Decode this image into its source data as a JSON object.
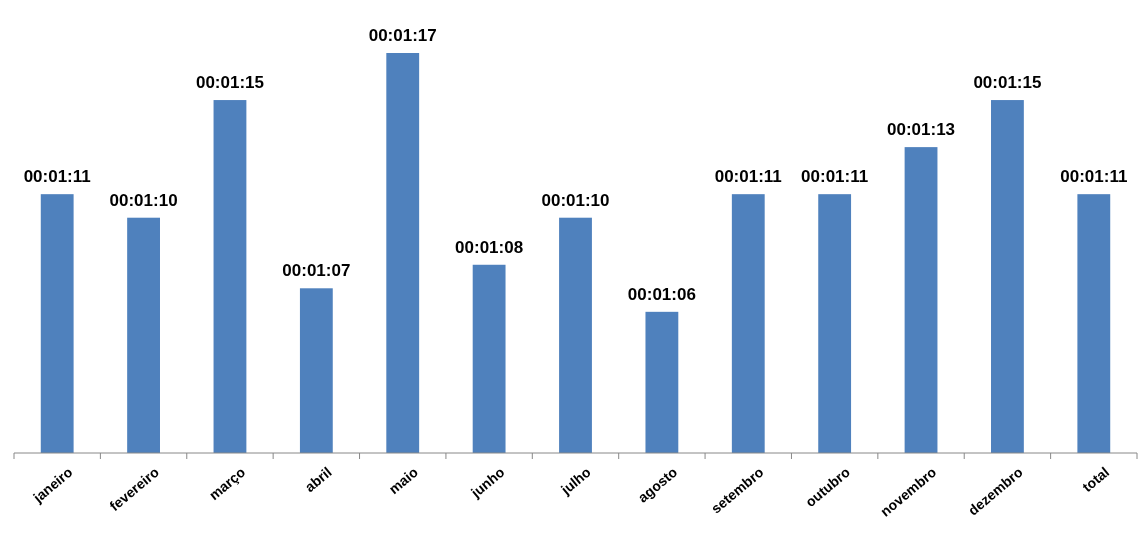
{
  "chart_data": {
    "type": "bar",
    "categories": [
      "janeiro",
      "fevereiro",
      "março",
      "abril",
      "maio",
      "junho",
      "julho",
      "agosto",
      "setembro",
      "outubro",
      "novembro",
      "dezembro",
      "total"
    ],
    "values": [
      71,
      70,
      75,
      67,
      77,
      68,
      70,
      66,
      71,
      71,
      73,
      75,
      71
    ],
    "value_labels": [
      "00:01:11",
      "00:01:10",
      "00:01:15",
      "00:01:07",
      "00:01:17",
      "00:01:08",
      "00:01:10",
      "00:01:06",
      "00:01:11",
      "00:01:11",
      "00:01:13",
      "00:01:15",
      "00:01:11"
    ],
    "color": "#4f81bd",
    "ylim": [
      60,
      77
    ],
    "tick_labels": "x"
  }
}
